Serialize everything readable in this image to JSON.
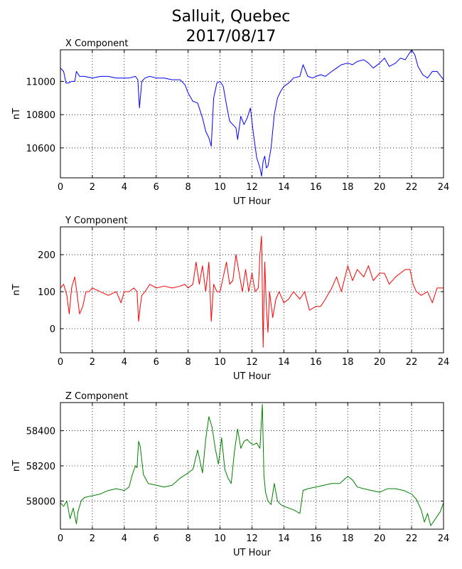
{
  "figure": {
    "title_line1": "Salluit, Quebec",
    "title_line2": "2017/08/17"
  },
  "chart_data": [
    {
      "type": "line",
      "title": "X Component",
      "xlabel": "UT Hour",
      "ylabel": "nT",
      "xlim": [
        0,
        24
      ],
      "ylim": [
        10420,
        11190
      ],
      "xticks": [
        0,
        2,
        4,
        6,
        8,
        10,
        12,
        14,
        16,
        18,
        20,
        22,
        24
      ],
      "yticks": [
        10600,
        10800,
        11000
      ],
      "grid": true,
      "color": "#0000ff",
      "series": [
        {
          "x": [
            0,
            0.2,
            0.35,
            0.5,
            0.7,
            0.9,
            1.0,
            1.2,
            1.5,
            2.0,
            2.5,
            3.0,
            3.5,
            4.0,
            4.3,
            4.7,
            4.85,
            4.95,
            5.1,
            5.3,
            5.6,
            6.0,
            6.5,
            7.0,
            7.5,
            7.8,
            8.0,
            8.3,
            8.6,
            8.9,
            9.1,
            9.3,
            9.45,
            9.6,
            9.8,
            10.0,
            10.2,
            10.4,
            10.6,
            10.8,
            11.0,
            11.1,
            11.3,
            11.5,
            11.7,
            11.9,
            12.1,
            12.3,
            12.5,
            12.6,
            12.7,
            12.8,
            12.9,
            13.0,
            13.2,
            13.4,
            13.6,
            13.8,
            14.0,
            14.3,
            14.6,
            15.0,
            15.2,
            15.5,
            15.8,
            16.0,
            16.3,
            16.6,
            17.0,
            17.3,
            17.6,
            18.0,
            18.3,
            18.6,
            19.0,
            19.3,
            19.6,
            20.0,
            20.3,
            20.6,
            21.0,
            21.3,
            21.6,
            22.0,
            22.2,
            22.4,
            22.7,
            23.0,
            23.3,
            23.6,
            24.0
          ],
          "y": [
            11080,
            11060,
            10990,
            10990,
            11000,
            11000,
            11060,
            11030,
            11030,
            11020,
            11030,
            11030,
            11020,
            11020,
            11020,
            11030,
            11010,
            10840,
            11000,
            11020,
            11030,
            11020,
            11020,
            11010,
            11010,
            10980,
            10930,
            10880,
            10870,
            10780,
            10700,
            10660,
            10610,
            10900,
            10990,
            11000,
            10970,
            10860,
            10760,
            10740,
            10720,
            10650,
            10790,
            10740,
            10780,
            10840,
            10680,
            10540,
            10480,
            10430,
            10520,
            10550,
            10480,
            10490,
            10600,
            10800,
            10900,
            10940,
            10970,
            10990,
            11020,
            11030,
            11100,
            11030,
            11020,
            11030,
            11040,
            11030,
            11060,
            11080,
            11100,
            11110,
            11100,
            11120,
            11130,
            11110,
            11080,
            11110,
            11140,
            11090,
            11110,
            11140,
            11130,
            11190,
            11160,
            11090,
            11040,
            11020,
            11060,
            11060,
            11010
          ]
        }
      ]
    },
    {
      "type": "line",
      "title": "Y Component",
      "xlabel": "UT Hour",
      "ylabel": "nT",
      "xlim": [
        0,
        24
      ],
      "ylim": [
        -65,
        275
      ],
      "xticks": [
        0,
        2,
        4,
        6,
        8,
        10,
        12,
        14,
        16,
        18,
        20,
        22,
        24
      ],
      "yticks": [
        0,
        100,
        200
      ],
      "grid": true,
      "color": "#ff0000",
      "series": [
        {
          "x": [
            0,
            0.2,
            0.4,
            0.55,
            0.7,
            0.9,
            1.05,
            1.2,
            1.4,
            1.6,
            1.8,
            2.0,
            2.5,
            3.0,
            3.5,
            3.8,
            4.0,
            4.3,
            4.6,
            4.8,
            4.9,
            5.0,
            5.1,
            5.3,
            5.6,
            6.0,
            6.5,
            7.0,
            7.5,
            7.8,
            8.0,
            8.3,
            8.5,
            8.7,
            8.9,
            9.1,
            9.3,
            9.45,
            9.6,
            9.8,
            10.0,
            10.2,
            10.4,
            10.6,
            10.8,
            11.0,
            11.2,
            11.4,
            11.6,
            11.8,
            12.0,
            12.2,
            12.4,
            12.5,
            12.6,
            12.7,
            12.8,
            12.9,
            13.0,
            13.1,
            13.3,
            13.5,
            13.7,
            14.0,
            14.3,
            14.6,
            15.0,
            15.3,
            15.6,
            16.0,
            16.3,
            16.6,
            17.0,
            17.3,
            17.6,
            18.0,
            18.3,
            18.6,
            19.0,
            19.3,
            19.6,
            20.0,
            20.3,
            20.6,
            21.0,
            21.3,
            21.6,
            21.9,
            22.1,
            22.3,
            22.6,
            23.0,
            23.3,
            23.6,
            24.0
          ],
          "y": [
            110,
            120,
            90,
            40,
            110,
            140,
            90,
            40,
            60,
            100,
            100,
            110,
            100,
            90,
            100,
            70,
            100,
            100,
            110,
            100,
            20,
            60,
            90,
            100,
            120,
            110,
            115,
            110,
            115,
            120,
            110,
            120,
            180,
            120,
            170,
            100,
            180,
            20,
            120,
            100,
            100,
            140,
            180,
            120,
            130,
            200,
            150,
            100,
            160,
            100,
            150,
            100,
            110,
            200,
            250,
            -50,
            180,
            60,
            -10,
            100,
            30,
            80,
            100,
            70,
            80,
            100,
            80,
            100,
            50,
            60,
            60,
            80,
            110,
            140,
            100,
            170,
            130,
            160,
            140,
            170,
            130,
            150,
            150,
            120,
            140,
            150,
            160,
            160,
            120,
            100,
            90,
            100,
            70,
            110,
            110
          ]
        }
      ]
    },
    {
      "type": "line",
      "title": "Z Component",
      "xlabel": "UT Hour",
      "ylabel": "nT",
      "xlim": [
        0,
        24
      ],
      "ylim": [
        57840,
        58560
      ],
      "xticks": [
        0,
        2,
        4,
        6,
        8,
        10,
        12,
        14,
        16,
        18,
        20,
        22,
        24
      ],
      "yticks": [
        58000,
        58200,
        58400
      ],
      "grid": true,
      "color": "#008000",
      "series": [
        {
          "x": [
            0,
            0.2,
            0.4,
            0.6,
            0.8,
            1.0,
            1.1,
            1.3,
            1.5,
            2.0,
            2.5,
            3.0,
            3.5,
            4.0,
            4.3,
            4.5,
            4.7,
            4.8,
            4.9,
            5.0,
            5.2,
            5.5,
            6.0,
            6.5,
            7.0,
            7.5,
            8.0,
            8.3,
            8.6,
            8.9,
            9.1,
            9.3,
            9.5,
            9.7,
            9.9,
            10.1,
            10.3,
            10.5,
            10.7,
            10.9,
            11.1,
            11.3,
            11.5,
            11.7,
            11.9,
            12.1,
            12.3,
            12.5,
            12.65,
            12.75,
            12.85,
            13.0,
            13.2,
            13.4,
            13.6,
            13.8,
            14.0,
            14.3,
            14.6,
            15.0,
            15.2,
            15.5,
            16.0,
            16.5,
            17.0,
            17.5,
            18.0,
            18.3,
            18.6,
            19.0,
            19.5,
            20.0,
            20.5,
            21.0,
            21.5,
            22.0,
            22.3,
            22.6,
            22.8,
            23.0,
            23.2,
            23.5,
            23.8,
            24.0
          ],
          "y": [
            57990,
            57970,
            58000,
            57900,
            57960,
            57870,
            57940,
            58000,
            58020,
            58030,
            58040,
            58060,
            58070,
            58060,
            58080,
            58150,
            58200,
            58190,
            58340,
            58310,
            58150,
            58100,
            58090,
            58080,
            58090,
            58130,
            58160,
            58180,
            58290,
            58160,
            58350,
            58480,
            58420,
            58300,
            58210,
            58360,
            58180,
            58130,
            58100,
            58280,
            58410,
            58300,
            58340,
            58350,
            58330,
            58320,
            58330,
            58300,
            58550,
            58150,
            58050,
            58000,
            57980,
            58100,
            58000,
            57980,
            57970,
            57960,
            57950,
            57930,
            58060,
            58070,
            58080,
            58090,
            58100,
            58100,
            58140,
            58120,
            58080,
            58070,
            58060,
            58050,
            58070,
            58070,
            58060,
            58040,
            58010,
            57950,
            57880,
            57930,
            57860,
            57900,
            57940,
            57990
          ]
        }
      ]
    }
  ]
}
